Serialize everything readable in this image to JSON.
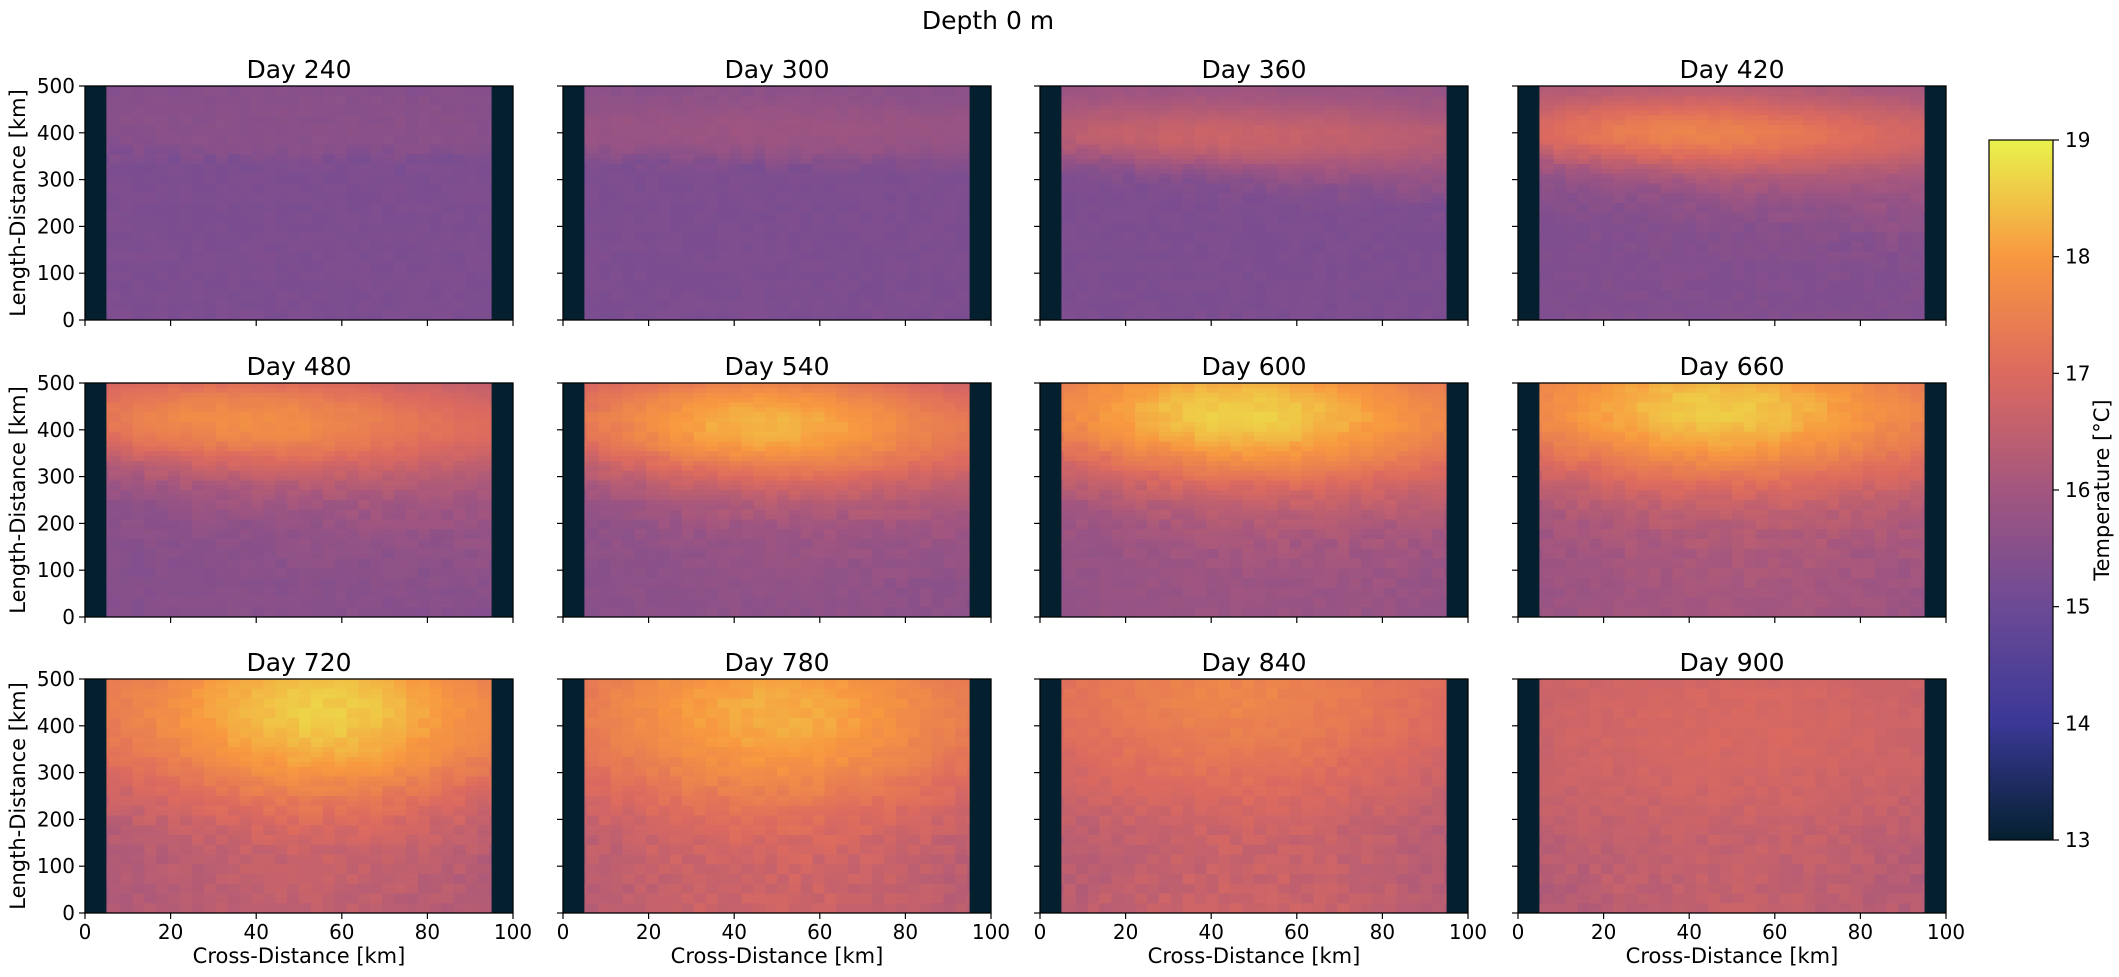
{
  "figure": {
    "suptitle": "Depth 0 m",
    "xlabel": "Cross-Distance [km]",
    "ylabel": "Length-Distance [km]",
    "colorbar_label": "Temperature [°C]"
  },
  "chart_data": {
    "type": "heatmap",
    "colormap": "thermal",
    "colormap_stops": [
      "#04202f",
      "#3a3896",
      "#6c4a96",
      "#a3567f",
      "#dc6a5f",
      "#f89840",
      "#e8f24c"
    ],
    "vmin": 13,
    "vmax": 19,
    "colorbar_ticks": [
      13,
      14,
      15,
      16,
      17,
      18,
      19
    ],
    "xlim": [
      0,
      100
    ],
    "ylim": [
      0,
      500
    ],
    "xticks": [
      0,
      20,
      40,
      60,
      80,
      100
    ],
    "yticks": [
      0,
      100,
      200,
      300,
      400,
      500
    ],
    "land_mask_km": [
      [
        0,
        5
      ],
      [
        95,
        100
      ]
    ],
    "land_value": 13,
    "base_temperature": 15.3,
    "panels": [
      {
        "title": "Day 240",
        "front_y": [
          355,
          350
        ],
        "front_width": 8,
        "warm_peak": 15.55,
        "warm_center": 420,
        "warm_halfwidth": 110,
        "core_x": 50,
        "core_sigma": 60,
        "south_anomaly": 0.0
      },
      {
        "title": "Day 300",
        "front_y": [
          350,
          330
        ],
        "front_width": 10,
        "warm_peak": 15.9,
        "warm_center": 405,
        "warm_halfwidth": 70,
        "core_x": 50,
        "core_sigma": 60,
        "south_anomaly": 0.0
      },
      {
        "title": "Day 360",
        "front_y": [
          350,
          260
        ],
        "front_width": 20,
        "warm_peak": 16.7,
        "warm_center": 390,
        "warm_halfwidth": 75,
        "core_x": 40,
        "core_sigma": 55,
        "south_anomaly": 0.0
      },
      {
        "title": "Day 420",
        "front_y": [
          330,
          190
        ],
        "front_width": 35,
        "warm_peak": 17.6,
        "warm_center": 395,
        "warm_halfwidth": 80,
        "core_x": 40,
        "core_sigma": 45,
        "south_anomaly": 0.1
      },
      {
        "title": "Day 480",
        "front_y": [
          320,
          140
        ],
        "front_width": 55,
        "warm_peak": 17.9,
        "warm_center": 410,
        "warm_halfwidth": 115,
        "core_x": 35,
        "core_sigma": 50,
        "south_anomaly": 0.2
      },
      {
        "title": "Day 540",
        "front_y": [
          300,
          140
        ],
        "front_width": 65,
        "warm_peak": 18.5,
        "warm_center": 400,
        "warm_halfwidth": 130,
        "core_x": 45,
        "core_sigma": 40,
        "south_anomaly": 0.3
      },
      {
        "title": "Day 600",
        "front_y": [
          290,
          150
        ],
        "front_width": 75,
        "warm_peak": 18.8,
        "warm_center": 420,
        "warm_halfwidth": 160,
        "core_x": 45,
        "core_sigma": 45,
        "south_anomaly": 0.5
      },
      {
        "title": "Day 660",
        "front_y": [
          260,
          160
        ],
        "front_width": 80,
        "warm_peak": 18.7,
        "warm_center": 430,
        "warm_halfwidth": 170,
        "core_x": 45,
        "core_sigma": 45,
        "south_anomaly": 0.7
      },
      {
        "title": "Day 720",
        "front_y": [
          180,
          130
        ],
        "front_width": 90,
        "warm_peak": 18.7,
        "warm_center": 420,
        "warm_halfwidth": 230,
        "core_x": 55,
        "core_sigma": 40,
        "south_anomaly": 1.2
      },
      {
        "title": "Day 780",
        "front_y": [
          140,
          120
        ],
        "front_width": 90,
        "warm_peak": 18.3,
        "warm_center": 420,
        "warm_halfwidth": 260,
        "core_x": 50,
        "core_sigma": 45,
        "south_anomaly": 1.5
      },
      {
        "title": "Day 840",
        "front_y": [
          100,
          80
        ],
        "front_width": 90,
        "warm_peak": 17.6,
        "warm_center": 470,
        "warm_halfwidth": 300,
        "core_x": 45,
        "core_sigma": 55,
        "south_anomaly": 1.6
      },
      {
        "title": "Day 900",
        "front_y": [
          60,
          60
        ],
        "front_width": 80,
        "warm_peak": 16.9,
        "warm_center": 400,
        "warm_halfwidth": 400,
        "core_x": 50,
        "core_sigma": 80,
        "south_anomaly": 1.4
      }
    ]
  }
}
